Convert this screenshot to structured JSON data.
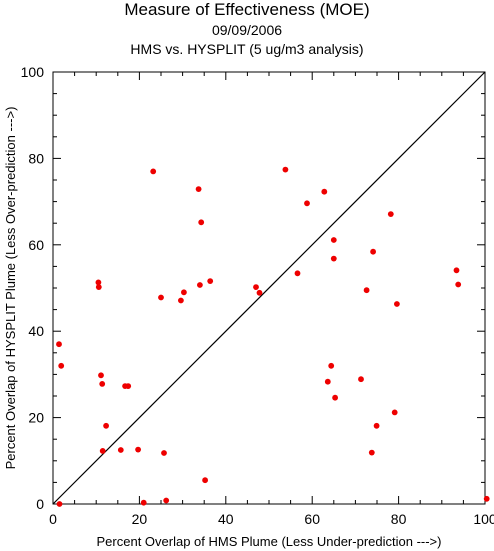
{
  "chart_data": {
    "type": "scatter",
    "title": "Measure of Effectiveness (MOE)",
    "subtitle": "09/09/2006",
    "subtitle2": "HMS vs. HYSPLIT  (5 ug/m3 analysis)",
    "xlabel": "Percent Overlap of HMS Plume (Less Under-prediction --->)",
    "ylabel": "Percent Overlap of HYSPLIT Plume (Less Over-prediction --->)",
    "xlim": [
      0,
      100
    ],
    "ylim": [
      0,
      100
    ],
    "xticks": [
      "0",
      "20",
      "40",
      "60",
      "80",
      "100"
    ],
    "yticks": [
      "0",
      "20",
      "40",
      "60",
      "80",
      "100"
    ],
    "grid": false,
    "reference_line": "y = x",
    "marker_color": "#ee0000",
    "line_color": "#000000",
    "points": [
      [
        1.4,
        37.0
      ],
      [
        1.9,
        32.0
      ],
      [
        1.5,
        0.0
      ],
      [
        10.5,
        51.3
      ],
      [
        10.6,
        50.2
      ],
      [
        11.1,
        29.8
      ],
      [
        11.4,
        27.8
      ],
      [
        11.5,
        12.3
      ],
      [
        12.3,
        18.1
      ],
      [
        15.7,
        12.5
      ],
      [
        16.7,
        27.3
      ],
      [
        17.4,
        27.3
      ],
      [
        19.7,
        12.6
      ],
      [
        21.0,
        0.3
      ],
      [
        23.2,
        77.0
      ],
      [
        25.0,
        47.8
      ],
      [
        25.7,
        11.8
      ],
      [
        26.2,
        0.8
      ],
      [
        29.6,
        47.1
      ],
      [
        30.3,
        49.0
      ],
      [
        33.7,
        72.9
      ],
      [
        34.0,
        50.7
      ],
      [
        34.3,
        65.2
      ],
      [
        35.2,
        5.5
      ],
      [
        36.4,
        51.6
      ],
      [
        47.0,
        50.2
      ],
      [
        47.8,
        48.9
      ],
      [
        53.8,
        77.4
      ],
      [
        56.6,
        53.4
      ],
      [
        58.8,
        69.6
      ],
      [
        62.8,
        72.3
      ],
      [
        63.6,
        28.3
      ],
      [
        64.4,
        32.0
      ],
      [
        65.0,
        61.1
      ],
      [
        65.0,
        56.8
      ],
      [
        65.3,
        24.6
      ],
      [
        71.3,
        28.9
      ],
      [
        72.6,
        49.5
      ],
      [
        73.8,
        11.9
      ],
      [
        74.1,
        58.4
      ],
      [
        74.9,
        18.1
      ],
      [
        78.2,
        67.1
      ],
      [
        79.1,
        21.2
      ],
      [
        79.6,
        46.3
      ],
      [
        93.4,
        54.1
      ],
      [
        93.8,
        50.8
      ],
      [
        100.4,
        1.2
      ]
    ]
  }
}
